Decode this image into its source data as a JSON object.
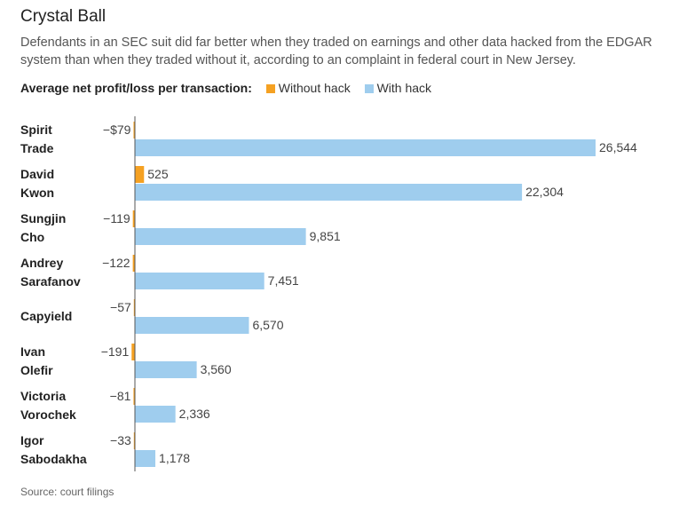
{
  "title": "Crystal Ball",
  "subtitle": "Defendants in an SEC suit did far better when they traded on earnings and other data hacked from the EDGAR system than when they traded without it, according to an complaint in federal court in New Jersey.",
  "legend": {
    "lead": "Average net profit/loss per transaction:",
    "items": [
      {
        "label": "Without hack",
        "color": "#f5a122"
      },
      {
        "label": "With hack",
        "color": "#9fcdee"
      }
    ]
  },
  "source": "Source: court filings",
  "chart_data": {
    "type": "bar",
    "orientation": "horizontal",
    "categories": [
      [
        "Spirit",
        "Trade"
      ],
      [
        "David",
        "Kwon"
      ],
      [
        "Sungjin",
        "Cho"
      ],
      [
        "Andrey",
        "Sarafanov"
      ],
      [
        "Capyield"
      ],
      [
        "Ivan",
        "Olefir"
      ],
      [
        "Victoria",
        "Vorochek"
      ],
      [
        "Igor",
        "Sabodakha"
      ]
    ],
    "series": [
      {
        "name": "Without hack",
        "color": "#f5a122",
        "values": [
          -79,
          525,
          -119,
          -122,
          -57,
          -191,
          -81,
          -33
        ],
        "labels": [
          "−$79",
          "525",
          "−119",
          "−122",
          "−57",
          "−191",
          "−81",
          "−33"
        ]
      },
      {
        "name": "With hack",
        "color": "#9fcdee",
        "values": [
          26544,
          22304,
          9851,
          7451,
          6570,
          3560,
          2336,
          1178
        ],
        "labels": [
          "26,544",
          "22,304",
          "9,851",
          "7,451",
          "6,570",
          "3,560",
          "2,336",
          "1,178"
        ]
      }
    ],
    "xlim": [
      -191,
      26544
    ],
    "grid": false,
    "legend_position": "top"
  }
}
